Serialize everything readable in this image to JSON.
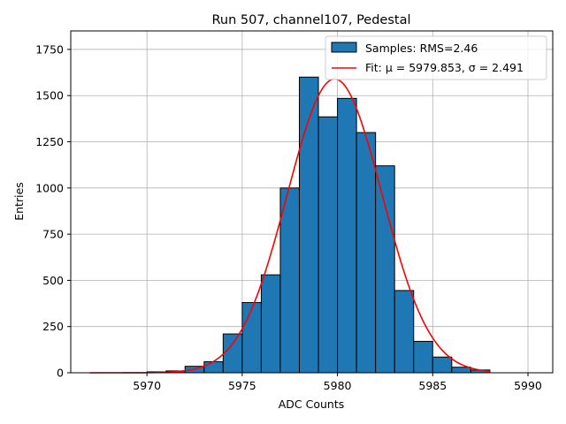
{
  "chart_data": {
    "type": "bar",
    "title": "Run 507, channel107, Pedestal",
    "xlabel": "ADC Counts",
    "ylabel": "Entries",
    "xlim": [
      5966,
      5991.3
    ],
    "ylim": [
      0,
      1850
    ],
    "xticks": [
      5970,
      5975,
      5980,
      5985,
      5990
    ],
    "yticks": [
      0,
      250,
      500,
      750,
      1000,
      1250,
      1500,
      1750
    ],
    "grid": true,
    "legend_position": "top-right",
    "histogram": {
      "name": "Samples: RMS=2.46",
      "color": "#1f77b4",
      "bin_edges": [
        5970,
        5971,
        5972,
        5973,
        5974,
        5975,
        5976,
        5977,
        5978,
        5979,
        5980,
        5981,
        5982,
        5983,
        5984,
        5985,
        5986,
        5987,
        5988
      ],
      "counts": [
        5,
        10,
        35,
        60,
        210,
        380,
        530,
        1000,
        1600,
        1385,
        1485,
        1300,
        1120,
        445,
        170,
        85,
        30,
        15
      ]
    },
    "fit": {
      "name": "Fit: μ = 5979.853, σ = 2.491",
      "color": "#ff0000",
      "mu": 5979.853,
      "sigma": 2.491,
      "amplitude": 1590,
      "x_range": [
        5967,
        5988
      ]
    }
  }
}
